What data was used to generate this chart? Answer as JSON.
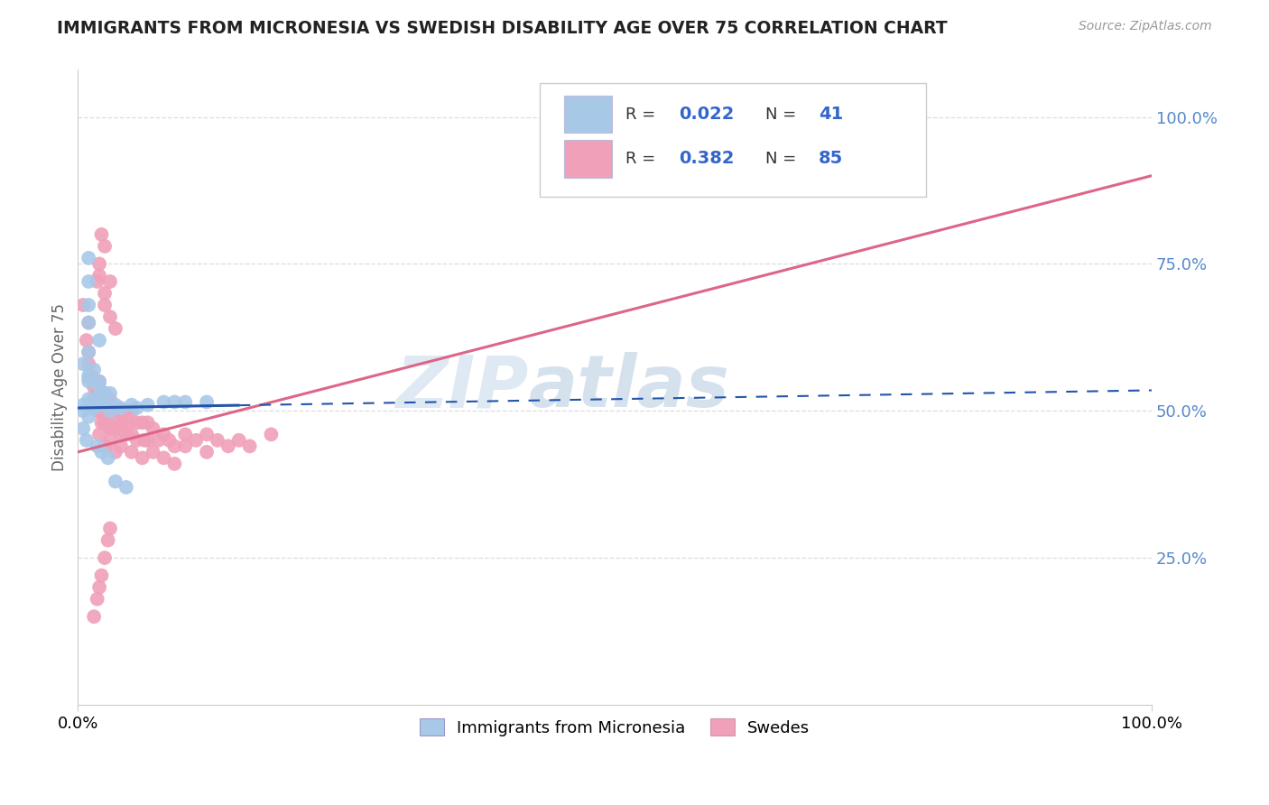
{
  "title": "IMMIGRANTS FROM MICRONESIA VS SWEDISH DISABILITY AGE OVER 75 CORRELATION CHART",
  "source": "Source: ZipAtlas.com",
  "ylabel": "Disability Age Over 75",
  "legend_labels": [
    "Immigrants from Micronesia",
    "Swedes"
  ],
  "r_blue": 0.022,
  "n_blue": 41,
  "r_pink": 0.382,
  "n_pink": 85,
  "blue_color": "#a8c8e8",
  "pink_color": "#f0a0b8",
  "blue_line_color": "#2255aa",
  "pink_line_color": "#dd6688",
  "grid_color": "#dddddd",
  "blue_scatter_x": [
    0.01,
    0.01,
    0.01,
    0.01,
    0.02,
    0.01,
    0.005,
    0.015,
    0.01,
    0.01,
    0.01,
    0.02,
    0.02,
    0.025,
    0.03,
    0.02,
    0.01,
    0.015,
    0.025,
    0.005,
    0.02,
    0.015,
    0.03,
    0.04,
    0.05,
    0.035,
    0.055,
    0.065,
    0.08,
    0.09,
    0.1,
    0.12,
    0.005,
    0.01,
    0.005,
    0.008,
    0.018,
    0.022,
    0.028,
    0.035,
    0.045
  ],
  "blue_scatter_y": [
    0.76,
    0.72,
    0.68,
    0.65,
    0.62,
    0.6,
    0.58,
    0.57,
    0.56,
    0.555,
    0.55,
    0.55,
    0.54,
    0.53,
    0.53,
    0.52,
    0.52,
    0.52,
    0.52,
    0.51,
    0.51,
    0.505,
    0.5,
    0.505,
    0.51,
    0.51,
    0.505,
    0.51,
    0.515,
    0.515,
    0.515,
    0.515,
    0.5,
    0.49,
    0.47,
    0.45,
    0.44,
    0.43,
    0.42,
    0.38,
    0.37
  ],
  "pink_scatter_x": [
    0.005,
    0.008,
    0.01,
    0.01,
    0.01,
    0.012,
    0.015,
    0.015,
    0.015,
    0.018,
    0.018,
    0.02,
    0.02,
    0.02,
    0.022,
    0.022,
    0.025,
    0.025,
    0.025,
    0.028,
    0.028,
    0.03,
    0.03,
    0.03,
    0.032,
    0.032,
    0.035,
    0.035,
    0.038,
    0.04,
    0.04,
    0.042,
    0.045,
    0.045,
    0.048,
    0.05,
    0.05,
    0.055,
    0.055,
    0.06,
    0.062,
    0.065,
    0.065,
    0.07,
    0.075,
    0.08,
    0.085,
    0.09,
    0.1,
    0.1,
    0.11,
    0.12,
    0.12,
    0.13,
    0.14,
    0.15,
    0.16,
    0.18,
    0.02,
    0.025,
    0.03,
    0.035,
    0.04,
    0.05,
    0.06,
    0.07,
    0.08,
    0.09,
    0.02,
    0.025,
    0.03,
    0.025,
    0.03,
    0.035,
    0.025,
    0.022,
    0.02,
    0.018,
    0.015,
    0.018,
    0.02,
    0.022,
    0.025,
    0.028,
    0.03
  ],
  "pink_scatter_y": [
    0.68,
    0.62,
    0.65,
    0.6,
    0.58,
    0.56,
    0.55,
    0.54,
    0.52,
    0.53,
    0.5,
    0.55,
    0.52,
    0.5,
    0.52,
    0.48,
    0.53,
    0.5,
    0.48,
    0.51,
    0.48,
    0.52,
    0.5,
    0.47,
    0.5,
    0.47,
    0.5,
    0.47,
    0.48,
    0.5,
    0.46,
    0.48,
    0.5,
    0.46,
    0.48,
    0.5,
    0.46,
    0.48,
    0.45,
    0.48,
    0.45,
    0.48,
    0.45,
    0.47,
    0.45,
    0.46,
    0.45,
    0.44,
    0.46,
    0.44,
    0.45,
    0.46,
    0.43,
    0.45,
    0.44,
    0.45,
    0.44,
    0.46,
    0.46,
    0.44,
    0.45,
    0.43,
    0.44,
    0.43,
    0.42,
    0.43,
    0.42,
    0.41,
    0.73,
    0.7,
    0.72,
    0.68,
    0.66,
    0.64,
    0.78,
    0.8,
    0.75,
    0.72,
    0.15,
    0.18,
    0.2,
    0.22,
    0.25,
    0.28,
    0.3
  ],
  "xlim": [
    0.0,
    1.0
  ],
  "ylim": [
    0.0,
    1.08
  ],
  "ytick_positions": [
    0.25,
    0.5,
    0.75,
    1.0
  ],
  "ytick_labels": [
    "25.0%",
    "50.0%",
    "75.0%",
    "100.0%"
  ],
  "blue_line_x_solid_end": 0.15,
  "pink_line_x0": 0.0,
  "pink_line_y0": 0.43,
  "pink_line_x1": 1.0,
  "pink_line_y1": 0.9,
  "blue_line_y_start": 0.505,
  "blue_line_y_end": 0.535
}
